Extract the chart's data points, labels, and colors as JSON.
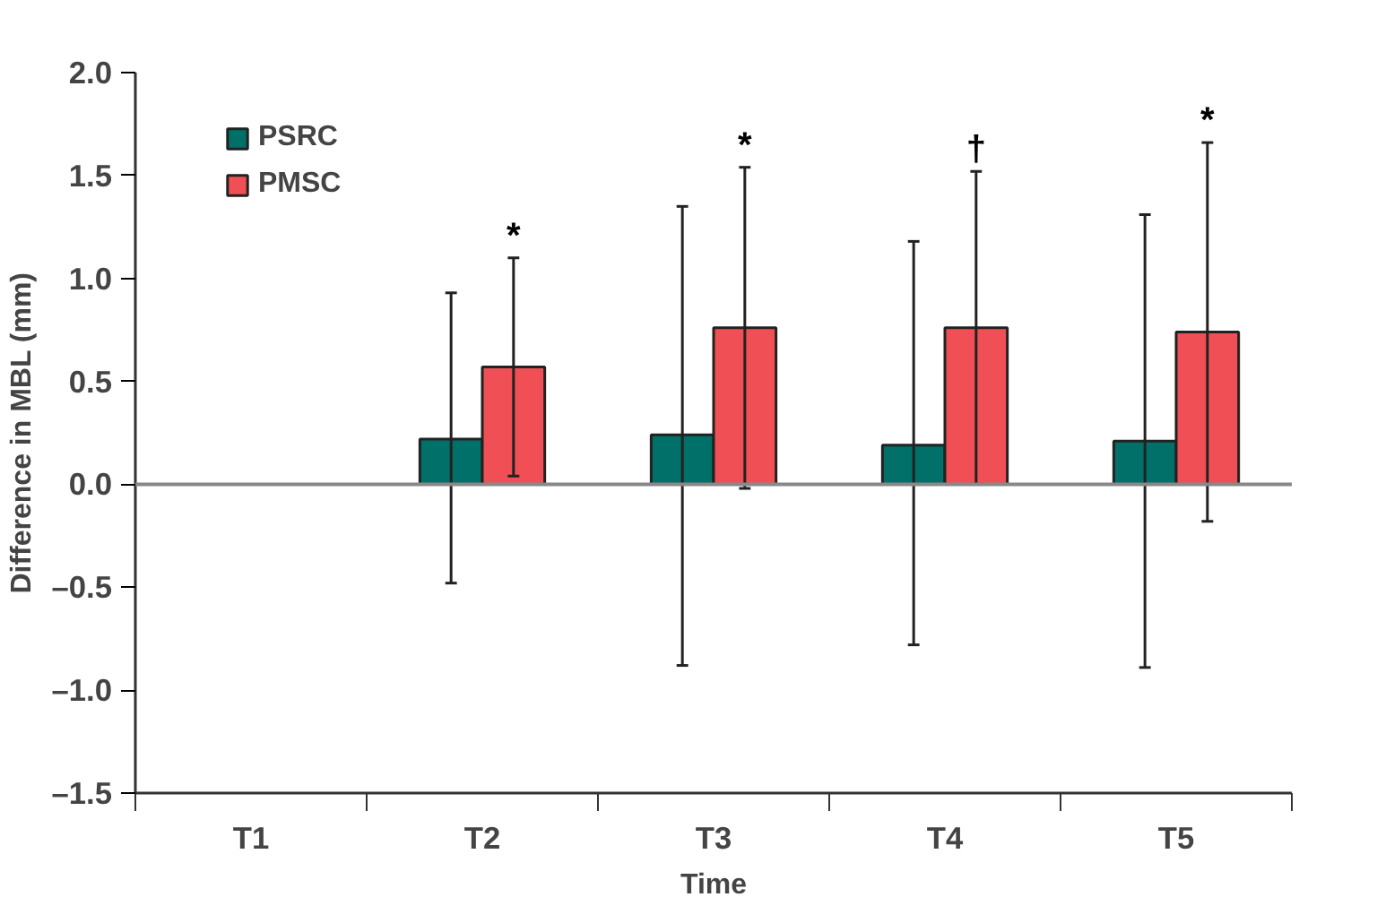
{
  "chart_data": {
    "type": "bar",
    "xlabel": "Time",
    "ylabel": "Difference in MBL (mm)",
    "categories": [
      "T1",
      "T2",
      "T3",
      "T4",
      "T5"
    ],
    "series": [
      {
        "name": "PSRC",
        "color": "#007068",
        "values": [
          null,
          0.22,
          0.24,
          0.19,
          0.21
        ],
        "errors": [
          null,
          [
            -0.48,
            0.93
          ],
          [
            -0.88,
            1.35
          ],
          [
            -0.78,
            1.18
          ],
          [
            -0.89,
            1.31
          ]
        ]
      },
      {
        "name": "PMSC",
        "color": "#f05055",
        "values": [
          null,
          0.57,
          0.76,
          0.76,
          0.74
        ],
        "errors": [
          null,
          [
            0.04,
            1.1
          ],
          [
            -0.02,
            1.54
          ],
          [
            0.0,
            1.52
          ],
          [
            -0.18,
            1.66
          ]
        ]
      }
    ],
    "ylim": [
      -1.5,
      2.0
    ],
    "yticks": [
      {
        "value": -1.5,
        "label": "–1.5"
      },
      {
        "value": -1.0,
        "label": "–1.0"
      },
      {
        "value": -0.5,
        "label": "–0.5"
      },
      {
        "value": 0,
        "label": "0.0"
      },
      {
        "value": 0.5,
        "label": "0.5"
      },
      {
        "value": 1.0,
        "label": "1.0"
      },
      {
        "value": 1.5,
        "label": "1.5"
      },
      {
        "value": 2.0,
        "label": "2.0"
      }
    ],
    "ref_lines": [
      {
        "axis": "y",
        "value": 0,
        "color": "#888888"
      }
    ],
    "annotations": [
      "*",
      "*",
      "†",
      "*"
    ],
    "legend": "top left",
    "grid": false
  }
}
